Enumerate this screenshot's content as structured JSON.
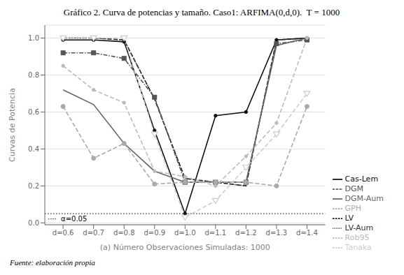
{
  "chart_data": {
    "type": "line",
    "title": "Gráfico 2. Curva de potencias y tamaño. Caso1: ARFIMA(0,d,0).  T = 1000",
    "x_label": "(a) Número Observaciones Simuladas: 1000",
    "y_label": "Curvas de Potencia",
    "footnote": "Fuente: elaboración propia",
    "x": [
      0.6,
      0.7,
      0.8,
      0.9,
      1.0,
      1.1,
      1.2,
      1.3,
      1.4
    ],
    "xlim": [
      0.54,
      1.46
    ],
    "xticks": [
      {
        "value": 0.6,
        "label": "d=0.6"
      },
      {
        "value": 0.7,
        "label": "d=0.7"
      },
      {
        "value": 0.8,
        "label": "d=0.8"
      },
      {
        "value": 0.9,
        "label": "d=0.9"
      },
      {
        "value": 1.0,
        "label": "d=1.0"
      },
      {
        "value": 1.1,
        "label": "d=1.1"
      },
      {
        "value": 1.2,
        "label": "d=1.2"
      },
      {
        "value": 1.3,
        "label": "d=1.3"
      },
      {
        "value": 1.4,
        "label": "d=1.4"
      }
    ],
    "ylim": [
      -0.01,
      1.07
    ],
    "yticks": [
      {
        "value": 0.0,
        "label": "0.0"
      },
      0.2,
      0.4,
      0.6,
      0.8,
      {
        "value": 1.0,
        "label": "1.0"
      }
    ],
    "grid": true,
    "legend": "lower right",
    "hline": {
      "y": 0.05,
      "line_style": "dotted",
      "color": "#000000",
      "label": "····  α=0.05"
    },
    "series": [
      {
        "name": "Cas-Lem",
        "color": "#111111",
        "line_style": "solid",
        "marker": "point",
        "values": [
          0.99,
          0.99,
          0.98,
          0.5,
          0.05,
          0.58,
          0.6,
          0.99,
          1.0
        ]
      },
      {
        "name": "LV",
        "color": "#222222",
        "line_style": "dashed",
        "marker": "none",
        "values": [
          1.0,
          1.0,
          0.99,
          0.67,
          0.24,
          0.22,
          0.2,
          0.99,
          1.0
        ]
      },
      {
        "name": "LV-Aum",
        "color": "#333333",
        "line_style": "dotted",
        "marker": "none",
        "values": [
          1.0,
          1.0,
          0.99,
          0.67,
          0.24,
          0.22,
          0.2,
          0.99,
          1.0
        ]
      },
      {
        "name": "DGM",
        "color": "#555555",
        "line_style": "dashdot",
        "marker": "square",
        "values": [
          0.92,
          0.92,
          0.89,
          0.68,
          0.22,
          0.22,
          0.22,
          0.97,
          0.99
        ]
      },
      {
        "name": "DGM-Aum",
        "color": "#666666",
        "line_style": "solid",
        "marker": "none",
        "values": [
          0.72,
          0.64,
          0.43,
          0.28,
          0.22,
          0.22,
          0.22,
          0.96,
          1.0
        ]
      },
      {
        "name": "GPH",
        "color": "#aaaaaa",
        "line_style": "dashed",
        "marker": "circle",
        "values": [
          0.63,
          0.35,
          0.43,
          0.21,
          0.22,
          0.22,
          0.22,
          0.2,
          0.63
        ]
      },
      {
        "name": "Rob95",
        "color": "#bbbbbb",
        "line_style": "dashed",
        "marker": "point",
        "values": [
          0.85,
          0.72,
          0.65,
          0.28,
          0.25,
          0.2,
          0.36,
          0.54,
          1.0
        ]
      },
      {
        "name": "Tanaka",
        "color": "#cccccc",
        "line_style": "dashed",
        "marker": "triangle_down",
        "values": [
          1.0,
          1.0,
          1.0,
          0.48,
          0.03,
          0.12,
          0.3,
          0.48,
          0.7
        ]
      }
    ]
  }
}
